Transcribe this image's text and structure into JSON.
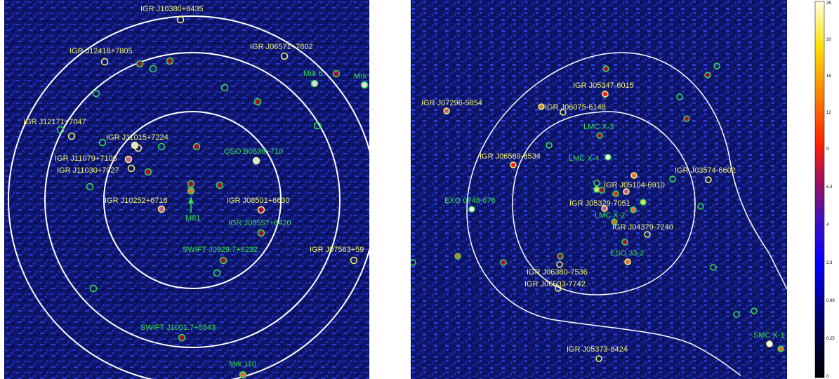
{
  "colors": {
    "label_yellow": "#f5f570",
    "label_green": "#33e04a",
    "contour": "#ffffff",
    "background": "#101a7a"
  },
  "left_panel": {
    "sources": [
      {
        "label": "IGR J10380+8435",
        "color": "yellow"
      },
      {
        "label": "IGR J12418+7805",
        "color": "yellow"
      },
      {
        "label": "IGR J06571+7802",
        "color": "yellow"
      },
      {
        "label": "Mrk 6",
        "color": "green"
      },
      {
        "label": "Mrk",
        "color": "green"
      },
      {
        "label": "IGR J12171+7047",
        "color": "yellow"
      },
      {
        "label": "IGR J11015+7224",
        "color": "yellow"
      },
      {
        "label": "QSO B0836+710",
        "color": "green"
      },
      {
        "label": "IGR J11079+7106",
        "color": "yellow"
      },
      {
        "label": "IGR J11030+7027",
        "color": "yellow"
      },
      {
        "label": "IGR J10252+6716",
        "color": "yellow"
      },
      {
        "label": "IGR J08501+6630",
        "color": "yellow"
      },
      {
        "label": "M81",
        "color": "green"
      },
      {
        "label": "IGR J08557+6420",
        "color": "green"
      },
      {
        "label": "SWIFT J0929.7+6232",
        "color": "green"
      },
      {
        "label": "IGR J07563+59",
        "color": "yellow"
      },
      {
        "label": "SWIFT J1001.7+5543",
        "color": "green"
      },
      {
        "label": "Mrk 110",
        "color": "green"
      }
    ]
  },
  "right_panel": {
    "sources": [
      {
        "label": "IGR J05347-6015",
        "color": "yellow"
      },
      {
        "label": "IGR J07296-5854",
        "color": "yellow"
      },
      {
        "label": "IGR J06075-6148",
        "color": "yellow"
      },
      {
        "label": "LMC X-3",
        "color": "green"
      },
      {
        "label": "IGR J06569-6534",
        "color": "yellow"
      },
      {
        "label": "LMC X-4",
        "color": "green"
      },
      {
        "label": "IGR J03574-6602",
        "color": "yellow"
      },
      {
        "label": "IGR J05104-6910",
        "color": "yellow"
      },
      {
        "label": "EXO 0748-676",
        "color": "green"
      },
      {
        "label": "IGR J05329-7051",
        "color": "yellow"
      },
      {
        "label": "LMC X-2",
        "color": "green"
      },
      {
        "label": "IGR J04379-7240",
        "color": "yellow"
      },
      {
        "label": "ESO 33-2",
        "color": "green"
      },
      {
        "label": "IGR J06380-7536",
        "color": "yellow"
      },
      {
        "label": "IGR J06503-7742",
        "color": "yellow"
      },
      {
        "label": "SMC X-1",
        "color": "green"
      },
      {
        "label": "IGR J05373-8424",
        "color": "yellow"
      }
    ]
  },
  "colorbar": {
    "ticks": [
      "25",
      "20",
      "16",
      "12",
      "9",
      "6.3",
      "4",
      "2.3",
      "0.99",
      "0.25",
      "0"
    ]
  }
}
